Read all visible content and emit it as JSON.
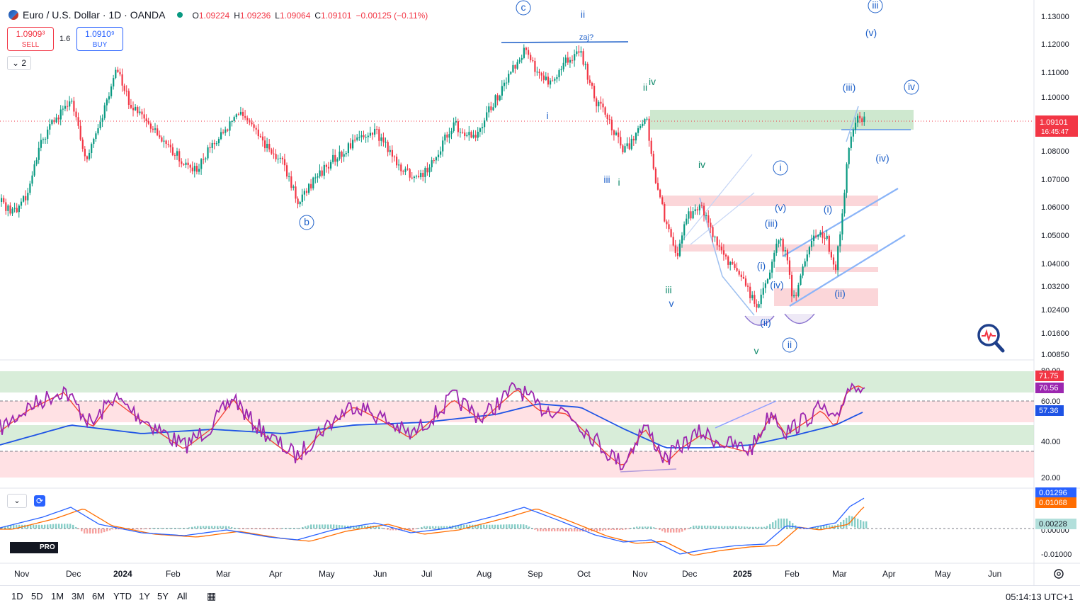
{
  "header": {
    "symbol_title": "Euro / U.S. Dollar · 1D · OANDA",
    "ohlc": {
      "open_label": "O",
      "open": "1.09224",
      "high_label": "H",
      "high": "1.09236",
      "low_label": "L",
      "low": "1.09064",
      "close_label": "C",
      "close": "1.09101",
      "change": "−0.00125 (−0.11%)"
    },
    "sell": {
      "price": "1.0909³",
      "label": "SELL"
    },
    "spread": "1.6",
    "buy": {
      "price": "1.0910⁹",
      "label": "BUY"
    },
    "indicator_count": "2"
  },
  "price_axis": {
    "ticks": [
      "1.13000",
      "1.12000",
      "1.11000",
      "1.10000",
      "1.08000",
      "1.07000",
      "1.06000",
      "1.05000",
      "1.04000",
      "1.03200",
      "1.02400",
      "1.01600",
      "1.00850"
    ],
    "last_price_tag": "1.09101",
    "countdown_tag": "16:45:47"
  },
  "rsi_axis": {
    "ticks": [
      "80.00",
      "60.00",
      "40.00",
      "20.00"
    ],
    "tags": [
      {
        "text": "71.75",
        "color": "#f23645"
      },
      {
        "text": "70.56",
        "color": "#9c27b0"
      },
      {
        "text": "57.36",
        "color": "#1e53e5"
      }
    ]
  },
  "macd_axis": {
    "ticks": [
      "0.00000",
      "-0.01000"
    ],
    "tags": [
      {
        "text": "0.01296",
        "color": "#2962ff"
      },
      {
        "text": "0.01068",
        "color": "#ff6d00"
      },
      {
        "text": "0.00228",
        "color": "#b2dfdb",
        "dark": true
      }
    ]
  },
  "time_axis": [
    "Nov",
    "Dec",
    "2024",
    "Feb",
    "Mar",
    "Apr",
    "May",
    "Jun",
    "Jul",
    "Aug",
    "Sep",
    "Oct",
    "Nov",
    "Dec",
    "2025",
    "Feb",
    "Mar",
    "Apr",
    "May",
    "Jun"
  ],
  "wave_labels": [
    "c",
    "ii",
    "zaj?",
    "iii",
    "(v)",
    "ii",
    "iv",
    "i",
    "iii",
    "i",
    "iv",
    "i",
    "(iii)",
    "iv",
    "(iv)",
    "b",
    "(v)",
    "(i)",
    "(iii)",
    "(i)",
    "iii",
    "v",
    "(iv)",
    "(ii)",
    "(ii)",
    "v",
    "ii"
  ],
  "timeframes": [
    "1D",
    "5D",
    "1M",
    "3M",
    "6M",
    "YTD",
    "1Y",
    "5Y",
    "All"
  ],
  "clock": "05:14:13 UTC+1",
  "colors": {
    "up": "#089981",
    "down": "#f23645",
    "wave_blue": "#1e60c9",
    "wave_teal": "#0f8a6b",
    "rsi": "#9c27b0",
    "rsi_ma": "#f44336",
    "rsi_slow": "#1e53e5",
    "macd": "#2962ff",
    "signal": "#ff6d00"
  },
  "icons": [
    "globe-icon",
    "magnifier-chart-icon",
    "settings-gear-icon",
    "calendar-range-icon",
    "chevron-down-icon",
    "refresh-icon"
  ]
}
